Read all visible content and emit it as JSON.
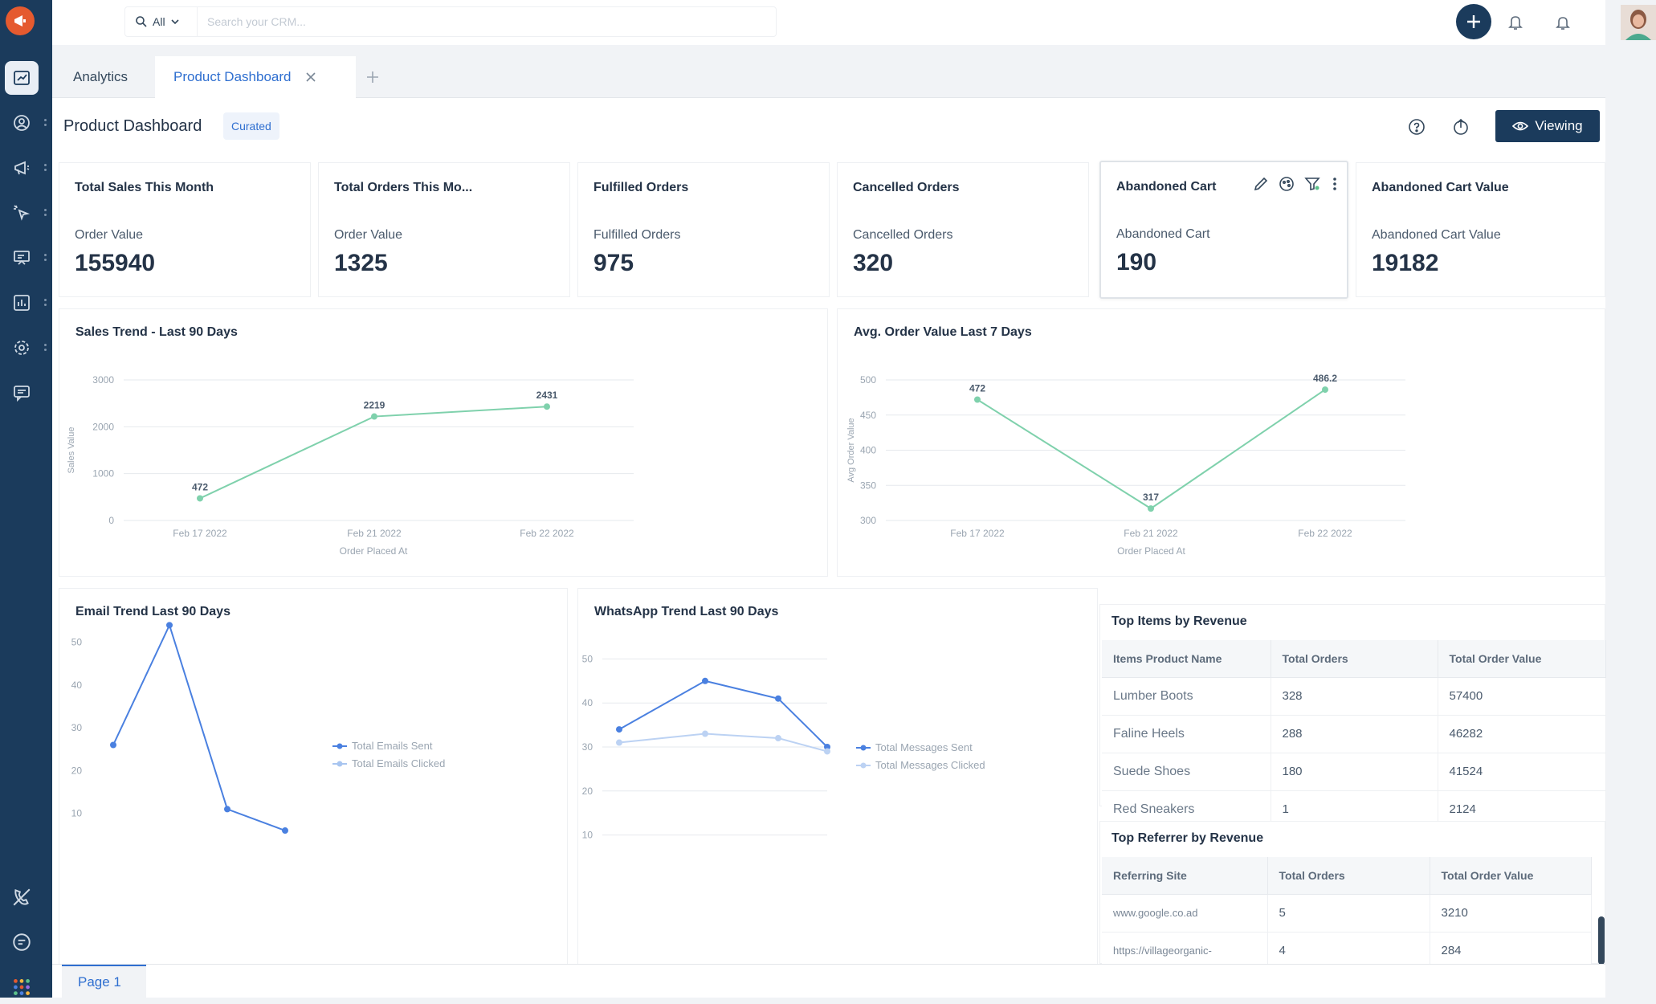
{
  "sidebar": {
    "items": [
      {
        "icon": "dashboard-icon",
        "active": true
      },
      {
        "icon": "contacts-icon",
        "active": false
      },
      {
        "icon": "megaphone-icon",
        "active": false
      },
      {
        "icon": "automation-icon",
        "active": false
      },
      {
        "icon": "presentation-icon",
        "active": false
      },
      {
        "icon": "reports-icon",
        "active": false
      },
      {
        "icon": "settings-icon",
        "active": false
      },
      {
        "icon": "messages-icon",
        "active": false
      }
    ],
    "bottom_items": [
      {
        "icon": "phone-off-icon"
      },
      {
        "icon": "chat-icon"
      },
      {
        "icon": "apps-grid-icon"
      }
    ]
  },
  "topbar": {
    "search_scope": "All",
    "search_placeholder": "Search your CRM..."
  },
  "tabs": {
    "analytics": "Analytics",
    "product_dashboard": "Product Dashboard"
  },
  "header": {
    "title": "Product Dashboard",
    "badge": "Curated",
    "viewing_label": "Viewing"
  },
  "kpis": [
    {
      "title": "Total Sales This Month",
      "label": "Order Value",
      "value": "155940"
    },
    {
      "title": "Total Orders This Mo...",
      "label": "Order Value",
      "value": "1325"
    },
    {
      "title": "Fulfilled Orders",
      "label": "Fulfilled Orders",
      "value": "975"
    },
    {
      "title": "Cancelled Orders",
      "label": "Cancelled Orders",
      "value": "320"
    },
    {
      "title": "Abandoned Cart",
      "label": "Abandoned Cart",
      "value": "190"
    },
    {
      "title": "Abandoned Cart Value",
      "label": "Abandoned Cart Value",
      "value": "19182"
    }
  ],
  "chart_data": [
    {
      "type": "line",
      "title": "Sales Trend - Last 90 Days",
      "xlabel": "Order Placed At",
      "ylabel": "Sales Value",
      "categories": [
        "Feb 17 2022",
        "Feb 21 2022",
        "Feb 22 2022"
      ],
      "series": [
        {
          "values": [
            472,
            2219,
            2431
          ],
          "color": "#7fd1ac"
        }
      ],
      "ylim": [
        0,
        3000
      ],
      "yticks": [
        "0",
        "1000",
        "2000",
        "3000"
      ],
      "data_labels": [
        "472",
        "2219",
        "2431"
      ],
      "grid": true
    },
    {
      "type": "line",
      "title": "Avg. Order Value Last 7 Days",
      "xlabel": "Order Placed At",
      "ylabel": "Avg Order Value",
      "categories": [
        "Feb 17 2022",
        "Feb 21 2022",
        "Feb 22 2022"
      ],
      "series": [
        {
          "values": [
            472,
            317,
            486.2
          ],
          "color": "#7fd1ac"
        }
      ],
      "ylim": [
        300,
        500
      ],
      "yticks": [
        "300",
        "350",
        "400",
        "450",
        "500"
      ],
      "data_labels": [
        "472",
        "317",
        "486.2"
      ],
      "grid": true
    },
    {
      "type": "line",
      "title": "Email Trend Last 90 Days",
      "ylim": [
        0,
        55
      ],
      "yticks": [
        "10",
        "20",
        "30",
        "40",
        "50"
      ],
      "series": [
        {
          "name": "Total Emails Sent",
          "values": [
            26,
            54,
            11,
            6
          ],
          "color": "#4a80e0"
        },
        {
          "name": "Total Emails Clicked",
          "values": [],
          "color": "#a8c5f0"
        }
      ],
      "legend": "right",
      "grid": false
    },
    {
      "type": "line",
      "title": "WhatsApp Trend Last 90 Days",
      "ylim": [
        5,
        55
      ],
      "yticks": [
        "10",
        "20",
        "30",
        "40",
        "50"
      ],
      "series": [
        {
          "name": "Total Messages Sent",
          "values": [
            34,
            45,
            41,
            30
          ],
          "color": "#4a80e0"
        },
        {
          "name": "Total Messages Clicked",
          "values": [
            31,
            33,
            32,
            29
          ],
          "color": "#bcd2f3"
        }
      ],
      "legend": "right",
      "grid": true
    }
  ],
  "top_items": {
    "title": "Top Items by Revenue",
    "columns": [
      "Items Product Name",
      "Total Orders",
      "Total Order Value"
    ],
    "rows": [
      [
        "Lumber Boots",
        "328",
        "57400"
      ],
      [
        "Faline Heels",
        "288",
        "46282"
      ],
      [
        "Suede Shoes",
        "180",
        "41524"
      ],
      [
        "Red Sneakers",
        "1",
        "2124"
      ]
    ]
  },
  "top_referrer": {
    "title": "Top Referrer by Revenue",
    "columns": [
      "Referring Site",
      "Total Orders",
      "Total Order Value"
    ],
    "rows": [
      [
        "www.google.co.ad",
        "5",
        "3210"
      ],
      [
        "https://villageorganic-",
        "4",
        "284"
      ]
    ]
  },
  "footer": {
    "page_tab": "Page 1"
  },
  "colors": {
    "sidebar": "#1b3b5c",
    "accent": "#2f6fd0",
    "line_green": "#7fd1ac",
    "line_blue": "#4a80e0"
  }
}
